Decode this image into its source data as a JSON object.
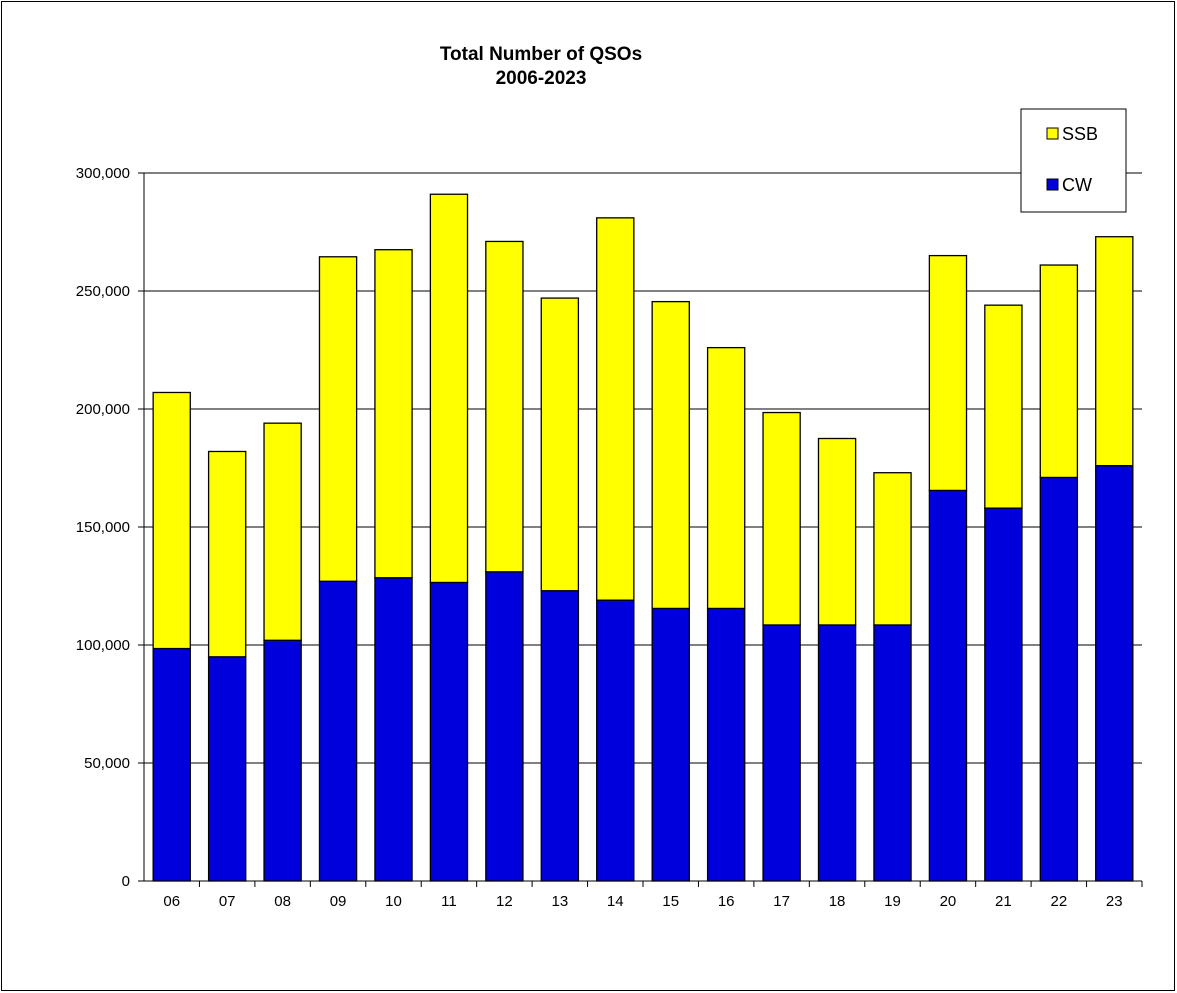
{
  "chart_data": {
    "type": "bar",
    "stacked": true,
    "title": "Total Number of QSOs",
    "subtitle": "2006-2023",
    "categories": [
      "06",
      "07",
      "08",
      "09",
      "10",
      "11",
      "12",
      "13",
      "14",
      "15",
      "16",
      "17",
      "18",
      "19",
      "20",
      "21",
      "22",
      "23"
    ],
    "series": [
      {
        "name": "CW",
        "color": "#0000dd",
        "values": [
          98500,
          95000,
          102000,
          127000,
          128500,
          126500,
          131000,
          123000,
          119000,
          115500,
          115500,
          108500,
          108500,
          108500,
          165500,
          158000,
          171000,
          176000
        ]
      },
      {
        "name": "SSB",
        "color": "#ffff00",
        "values": [
          108500,
          87000,
          92000,
          137500,
          139000,
          164500,
          140000,
          124000,
          162000,
          130000,
          110500,
          90000,
          79000,
          64500,
          99500,
          86000,
          90000,
          97000
        ]
      }
    ],
    "ylim": [
      0,
      300000
    ],
    "yticks": [
      0,
      50000,
      100000,
      150000,
      200000,
      250000,
      300000
    ],
    "ytick_labels": [
      "0",
      "50,000",
      "100,000",
      "150,000",
      "200,000",
      "250,000",
      "300,000"
    ],
    "grid": true,
    "legend_position": "top-right",
    "legend_order": [
      "SSB",
      "CW"
    ]
  }
}
